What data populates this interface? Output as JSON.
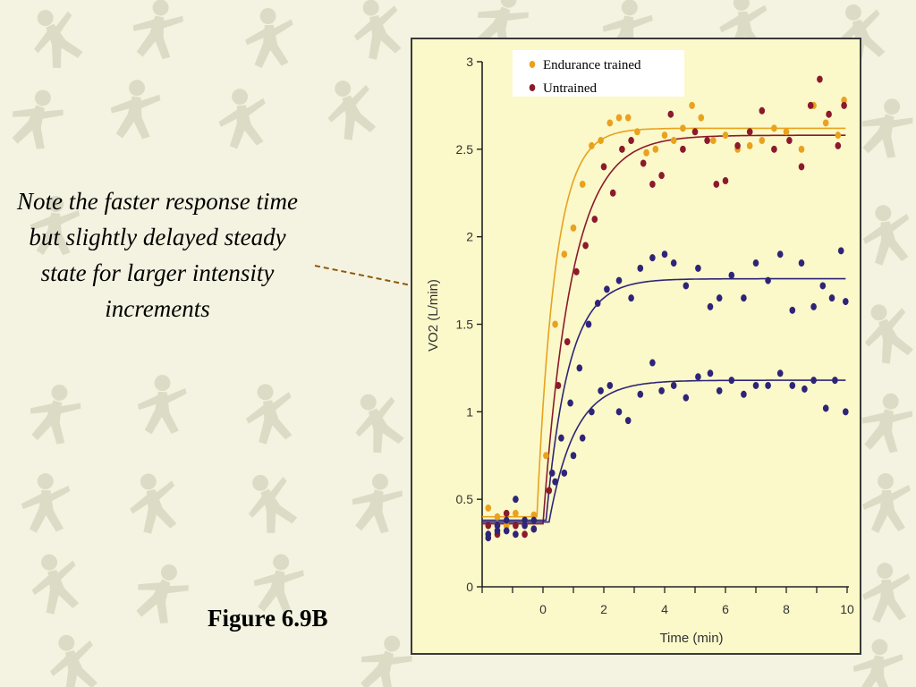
{
  "slide": {
    "note": "Note the faster response time but slightly delayed steady state for larger intensity increments",
    "figure_label": "Figure 6.9B"
  },
  "colors": {
    "background": "#f4f3e1",
    "silhouette": "#dcdcc6",
    "chart_background": "#fbf8c9",
    "endurance_trained": "#e8a21e",
    "untrained": "#8b1a2c",
    "low_intensity": "#2e2578",
    "arrow": "#8a5a0a"
  },
  "background_icons": [
    "runner-icon",
    "cyclist-icon",
    "basketball-player-icon",
    "skier-icon",
    "thrower-icon",
    "swimmer-icon"
  ],
  "chart_data": {
    "type": "scatter",
    "title": "",
    "xlabel": "Time (min)",
    "ylabel": "VO2 (L/min)",
    "xlim": [
      -2,
      10
    ],
    "ylim": [
      0,
      3
    ],
    "xticks": [
      0,
      2,
      4,
      6,
      8,
      10
    ],
    "yticks": [
      0,
      0.5,
      1,
      1.5,
      2,
      2.5,
      3
    ],
    "ytick_labels": [
      "0",
      "0.5",
      "1",
      "1.5",
      "2",
      "2.5",
      "3"
    ],
    "grid": false,
    "legend_position": "top-right",
    "series": [
      {
        "name": "Endurance trained",
        "color": "#e8a21e",
        "fit": {
          "baseline": 0.4,
          "amplitude": 2.22,
          "onset": -0.2,
          "tau": 0.6
        },
        "points": [
          [
            -1.8,
            0.45
          ],
          [
            -1.5,
            0.4
          ],
          [
            -1.2,
            0.35
          ],
          [
            -0.9,
            0.42
          ],
          [
            -0.6,
            0.38
          ],
          [
            -0.3,
            0.41
          ],
          [
            0.1,
            0.75
          ],
          [
            0.4,
            1.5
          ],
          [
            0.7,
            1.9
          ],
          [
            1.0,
            2.05
          ],
          [
            1.3,
            2.3
          ],
          [
            1.6,
            2.52
          ],
          [
            1.9,
            2.55
          ],
          [
            2.2,
            2.65
          ],
          [
            2.5,
            2.68
          ],
          [
            2.8,
            2.68
          ],
          [
            3.1,
            2.6
          ],
          [
            3.4,
            2.48
          ],
          [
            3.7,
            2.5
          ],
          [
            4.0,
            2.58
          ],
          [
            4.3,
            2.55
          ],
          [
            4.6,
            2.62
          ],
          [
            4.9,
            2.75
          ],
          [
            5.2,
            2.68
          ],
          [
            5.6,
            2.55
          ],
          [
            6.0,
            2.58
          ],
          [
            6.4,
            2.5
          ],
          [
            6.8,
            2.52
          ],
          [
            7.2,
            2.55
          ],
          [
            7.6,
            2.62
          ],
          [
            8.0,
            2.6
          ],
          [
            8.5,
            2.5
          ],
          [
            8.9,
            2.75
          ],
          [
            9.3,
            2.65
          ],
          [
            9.7,
            2.58
          ],
          [
            9.9,
            2.78
          ]
        ]
      },
      {
        "name": "Untrained",
        "color": "#8b1a2c",
        "fit": {
          "baseline": 0.36,
          "amplitude": 2.22,
          "onset": 0.0,
          "tau": 0.95
        },
        "points": [
          [
            -1.8,
            0.35
          ],
          [
            -1.5,
            0.3
          ],
          [
            -1.2,
            0.42
          ],
          [
            -0.9,
            0.35
          ],
          [
            -0.6,
            0.3
          ],
          [
            -0.3,
            0.33
          ],
          [
            0.2,
            0.55
          ],
          [
            0.5,
            1.15
          ],
          [
            0.8,
            1.4
          ],
          [
            1.1,
            1.8
          ],
          [
            1.4,
            1.95
          ],
          [
            1.7,
            2.1
          ],
          [
            2.0,
            2.4
          ],
          [
            2.3,
            2.25
          ],
          [
            2.6,
            2.5
          ],
          [
            2.9,
            2.55
          ],
          [
            3.3,
            2.42
          ],
          [
            3.6,
            2.3
          ],
          [
            3.9,
            2.35
          ],
          [
            4.2,
            2.7
          ],
          [
            4.6,
            2.5
          ],
          [
            5.0,
            2.6
          ],
          [
            5.4,
            2.55
          ],
          [
            5.7,
            2.3
          ],
          [
            6.0,
            2.32
          ],
          [
            6.4,
            2.52
          ],
          [
            6.8,
            2.6
          ],
          [
            7.2,
            2.72
          ],
          [
            7.6,
            2.5
          ],
          [
            8.1,
            2.55
          ],
          [
            8.5,
            2.4
          ],
          [
            8.8,
            2.75
          ],
          [
            9.1,
            2.9
          ],
          [
            9.4,
            2.7
          ],
          [
            9.7,
            2.52
          ],
          [
            9.9,
            2.75
          ]
        ]
      },
      {
        "name": "",
        "color": "#2e2578",
        "fit": {
          "baseline": 0.38,
          "amplitude": 1.38,
          "onset": 0.1,
          "tau": 0.75
        },
        "points": [
          [
            -1.8,
            0.28
          ],
          [
            -1.5,
            0.35
          ],
          [
            -1.2,
            0.32
          ],
          [
            -0.9,
            0.5
          ],
          [
            -0.6,
            0.38
          ],
          [
            -0.3,
            0.33
          ],
          [
            0.3,
            0.65
          ],
          [
            0.6,
            0.85
          ],
          [
            0.9,
            1.05
          ],
          [
            1.2,
            1.25
          ],
          [
            1.5,
            1.5
          ],
          [
            1.8,
            1.62
          ],
          [
            2.1,
            1.7
          ],
          [
            2.5,
            1.75
          ],
          [
            2.9,
            1.65
          ],
          [
            3.2,
            1.82
          ],
          [
            3.6,
            1.88
          ],
          [
            4.0,
            1.9
          ],
          [
            4.3,
            1.85
          ],
          [
            4.7,
            1.72
          ],
          [
            5.1,
            1.82
          ],
          [
            5.5,
            1.6
          ],
          [
            5.8,
            1.65
          ],
          [
            6.2,
            1.78
          ],
          [
            6.6,
            1.65
          ],
          [
            7.0,
            1.85
          ],
          [
            7.4,
            1.75
          ],
          [
            7.8,
            1.9
          ],
          [
            8.2,
            1.58
          ],
          [
            8.5,
            1.85
          ],
          [
            8.9,
            1.6
          ],
          [
            9.2,
            1.72
          ],
          [
            9.5,
            1.65
          ],
          [
            9.8,
            1.92
          ],
          [
            9.95,
            1.63
          ]
        ]
      },
      {
        "name": "",
        "color": "#2e2578",
        "fit": {
          "baseline": 0.37,
          "amplitude": 0.81,
          "onset": 0.2,
          "tau": 0.85
        },
        "points": [
          [
            -1.8,
            0.3
          ],
          [
            -1.5,
            0.32
          ],
          [
            -1.2,
            0.38
          ],
          [
            -0.9,
            0.3
          ],
          [
            -0.6,
            0.35
          ],
          [
            -0.3,
            0.38
          ],
          [
            0.4,
            0.6
          ],
          [
            0.7,
            0.65
          ],
          [
            1.0,
            0.75
          ],
          [
            1.3,
            0.85
          ],
          [
            1.6,
            1.0
          ],
          [
            1.9,
            1.12
          ],
          [
            2.2,
            1.15
          ],
          [
            2.5,
            1.0
          ],
          [
            2.8,
            0.95
          ],
          [
            3.2,
            1.1
          ],
          [
            3.6,
            1.28
          ],
          [
            3.9,
            1.12
          ],
          [
            4.3,
            1.15
          ],
          [
            4.7,
            1.08
          ],
          [
            5.1,
            1.2
          ],
          [
            5.5,
            1.22
          ],
          [
            5.8,
            1.12
          ],
          [
            6.2,
            1.18
          ],
          [
            6.6,
            1.1
          ],
          [
            7.0,
            1.15
          ],
          [
            7.4,
            1.15
          ],
          [
            7.8,
            1.22
          ],
          [
            8.2,
            1.15
          ],
          [
            8.6,
            1.13
          ],
          [
            8.9,
            1.18
          ],
          [
            9.3,
            1.02
          ],
          [
            9.6,
            1.18
          ],
          [
            9.95,
            1.0
          ]
        ]
      }
    ]
  }
}
